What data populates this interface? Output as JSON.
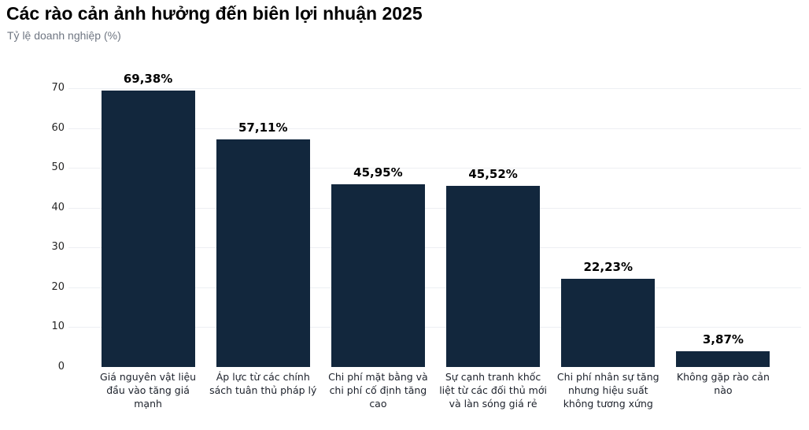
{
  "chart_data": {
    "type": "bar",
    "title": "Các rào cản ảnh hưởng đến biên lợi nhuận 2025",
    "subtitle": "Tỷ lệ doanh nghiệp (%)",
    "categories": [
      "Giá nguyên vật liệu đầu vào tăng giá mạnh",
      "Áp lực từ các chính sách tuân thủ pháp lý",
      "Chi phí mặt bằng và chi phí cố định tăng cao",
      "Sự cạnh tranh khốc liệt từ các đối thủ mới và làn sóng giá rẻ",
      "Chi phí nhân sự tăng nhưng hiệu suất không tương xứng",
      "Không gặp rào cản nào"
    ],
    "values": [
      69.38,
      57.11,
      45.95,
      45.52,
      22.23,
      3.87
    ],
    "value_labels": [
      "69,38%",
      "57,11%",
      "45,95%",
      "45,52%",
      "22,23%",
      "3,87%"
    ],
    "xlabel": "",
    "ylabel": "",
    "ylim": [
      0,
      70
    ],
    "yticks": [
      0,
      10,
      20,
      30,
      40,
      50,
      60,
      70
    ],
    "grid": "horizontal",
    "legend": "none",
    "bar_color": "#12273d",
    "grid_color": "#edeff3",
    "title_color": "#000000",
    "subtitle_color": "#6f7682"
  }
}
